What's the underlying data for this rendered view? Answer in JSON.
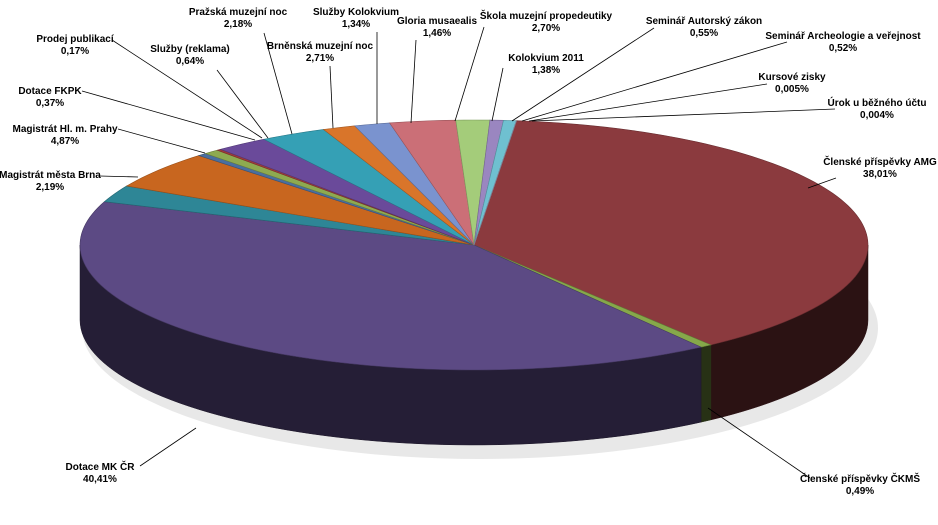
{
  "chart_data": {
    "type": "pie",
    "title": "",
    "slices": [
      {
        "name": "Členské příspěvky AMG",
        "value": 38.01,
        "label": "38,01%",
        "color": "#8B3A3E"
      },
      {
        "name": "Členské příspěvky ČKMŠ",
        "value": 0.49,
        "label": "0,49%",
        "color": "#86A84A"
      },
      {
        "name": "Dotace MK ČR",
        "value": 40.41,
        "label": "40,41%",
        "color": "#5C4A84"
      },
      {
        "name": "Magistrát města Brna",
        "value": 2.19,
        "label": "2,19%",
        "color": "#2E8696"
      },
      {
        "name": "Magistrát Hl. m. Prahy",
        "value": 4.87,
        "label": "4,87%",
        "color": "#C8661F"
      },
      {
        "name": "Dotace FKPK",
        "value": 0.37,
        "label": "0,37%",
        "color": "#4A6FA0"
      },
      {
        "name": "Služby (reklama)",
        "value": 0.64,
        "label": "0,64%",
        "color": "#8EAA50"
      },
      {
        "name": "Prodej publikací",
        "value": 0.17,
        "label": "0,17%",
        "color": "#A03A3A"
      },
      {
        "name": "Pražská muzejní noc",
        "value": 2.18,
        "label": "2,18%",
        "color": "#6A4A9A"
      },
      {
        "name": "Brněnská muzejní noc",
        "value": 2.71,
        "label": "2,71%",
        "color": "#35A0B5"
      },
      {
        "name": "Služby Kolokvium",
        "value": 1.34,
        "label": "1,34%",
        "color": "#D9752A"
      },
      {
        "name": "Gloria musaealis",
        "value": 1.46,
        "label": "1,46%",
        "color": "#7A93CF"
      },
      {
        "name": "Škola muzejní propedeutiky",
        "value": 2.7,
        "label": "2,70%",
        "color": "#CB6F77"
      },
      {
        "name": "Kolokvium 2011",
        "value": 1.38,
        "label": "1,38%",
        "color": "#A4CC7A"
      },
      {
        "name": "Seminář Autorský zákon",
        "value": 0.55,
        "label": "0,55%",
        "color": "#9A86C0"
      },
      {
        "name": "Seminář Archeologie a veřejnost",
        "value": 0.52,
        "label": "0,52%",
        "color": "#6FC0D0"
      },
      {
        "name": "Kursové zisky",
        "value": 0.005,
        "label": "0,005%",
        "color": "#E8A060"
      },
      {
        "name": "Úrok u běžného účtu",
        "value": 0.004,
        "label": "0,004%",
        "color": "#9BB0E0"
      }
    ]
  }
}
